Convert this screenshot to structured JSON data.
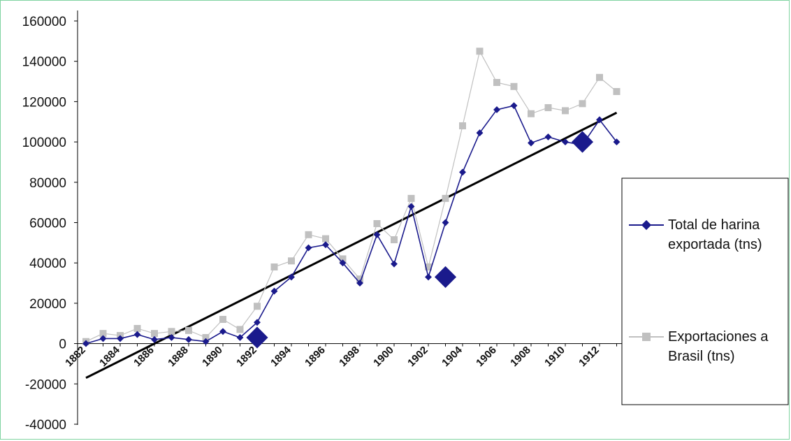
{
  "chart_data": {
    "type": "line",
    "x": [
      1882,
      1883,
      1884,
      1885,
      1886,
      1887,
      1888,
      1889,
      1890,
      1891,
      1892,
      1893,
      1894,
      1895,
      1896,
      1897,
      1898,
      1899,
      1900,
      1901,
      1902,
      1903,
      1904,
      1905,
      1906,
      1907,
      1908,
      1909,
      1910,
      1911,
      1912,
      1913
    ],
    "x_ticks": [
      "1882",
      "1884",
      "1886",
      "1888",
      "1890",
      "1892",
      "1894",
      "1896",
      "1898",
      "1900",
      "1902",
      "1904",
      "1906",
      "1908",
      "1910",
      "1912"
    ],
    "y_ticks": [
      "160000",
      "140000",
      "120000",
      "100000",
      "80000",
      "60000",
      "40000",
      "20000",
      "0",
      "-20000",
      "-40000"
    ],
    "ylim": [
      -40000,
      160000
    ],
    "series": [
      {
        "name": "Total de harina exportada (tns)",
        "color": "#1a1a8c",
        "marker": "diamond",
        "values": [
          0,
          2500,
          2500,
          4500,
          2000,
          3000,
          2000,
          1000,
          6000,
          3000,
          10500,
          26000,
          33000,
          47500,
          49000,
          40000,
          30000,
          54000,
          39500,
          68000,
          33000,
          60000,
          85000,
          104500,
          116000,
          118000,
          99500,
          102500,
          100000,
          98500,
          111000,
          100000
        ]
      },
      {
        "name": "Exportaciones a Brasil (tns)",
        "color": "#c0c0c0",
        "marker": "square",
        "values": [
          1000,
          5000,
          4000,
          7500,
          5000,
          6000,
          6500,
          3000,
          12000,
          7000,
          18500,
          38000,
          41000,
          54000,
          52000,
          42000,
          32000,
          59500,
          51500,
          72000,
          38000,
          72000,
          108000,
          145000,
          129500,
          127500,
          114000,
          117000,
          115500,
          119000,
          132000,
          125000
        ]
      }
    ],
    "trendline": {
      "color": "#000000",
      "start": [
        1882,
        -17000
      ],
      "end": [
        1913,
        114500
      ]
    },
    "highlights": [
      {
        "x": 1892,
        "y": 3000
      },
      {
        "x": 1903,
        "y": 33000
      },
      {
        "x": 1911,
        "y": 100000
      }
    ],
    "legend_position": "right",
    "grid": false
  },
  "legend": {
    "items": [
      {
        "line1": "Total de harina",
        "line2": "exportada (tns)"
      },
      {
        "line1": "Exportaciones a",
        "line2": "Brasil (tns)"
      }
    ]
  }
}
